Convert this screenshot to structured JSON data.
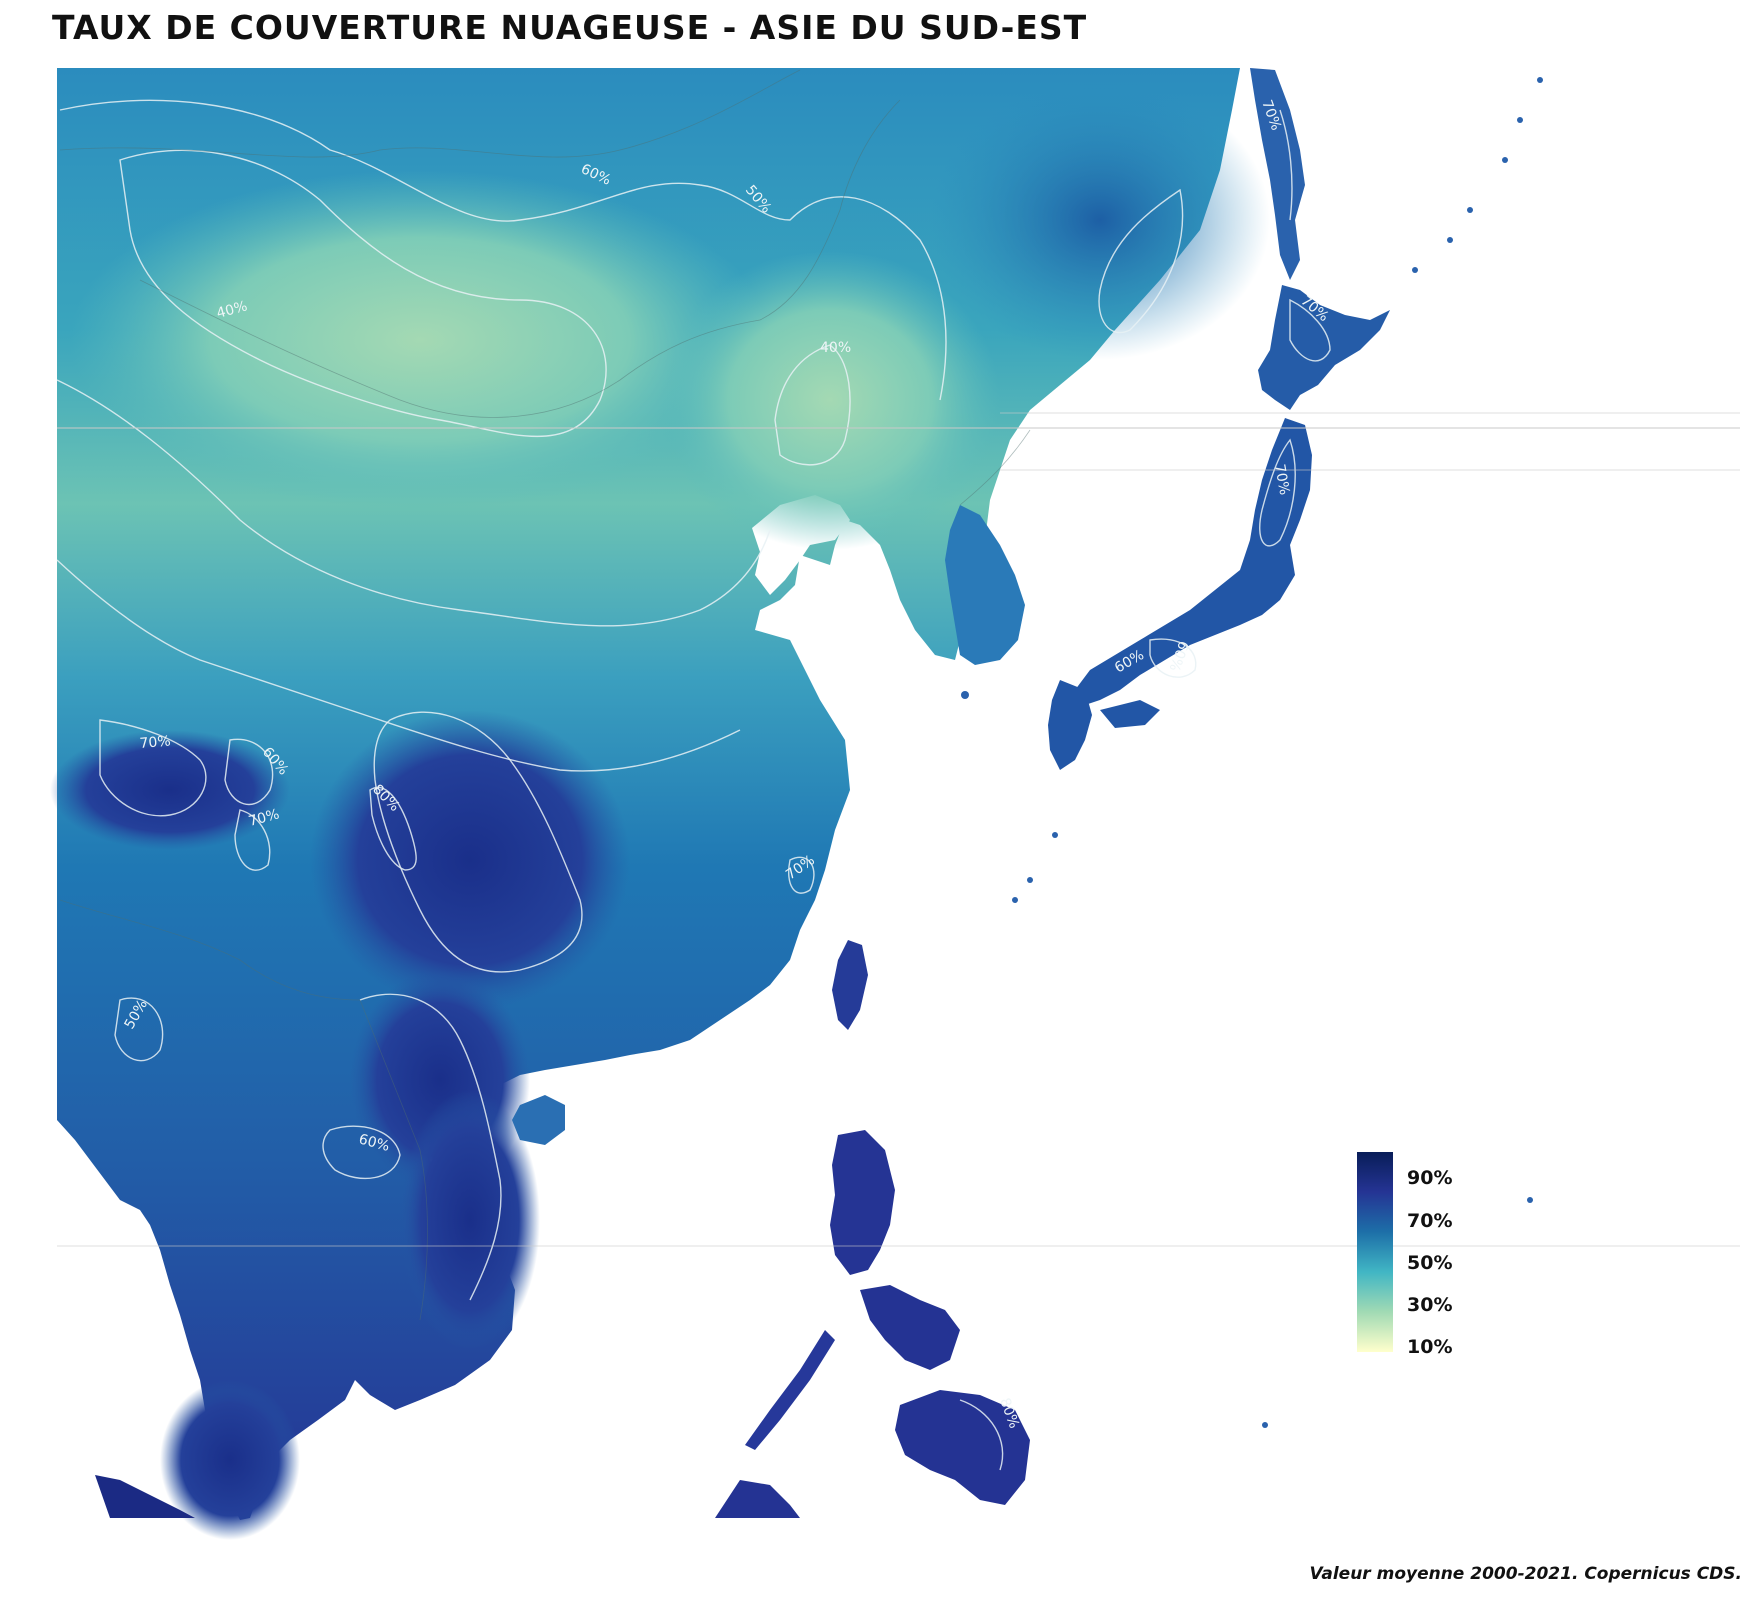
{
  "title": "Taux de couverture nuageuse - Asie du Sud-Est",
  "caption": "Valeur moyenne 2000-2021. Copernicus CDS.",
  "legend": {
    "labels": [
      "90%",
      "70%",
      "50%",
      "30%",
      "10%"
    ],
    "colors": [
      "#081d58",
      "#253494",
      "#1d6fa8",
      "#41b6c4",
      "#a1dab4",
      "#ffffcc"
    ]
  },
  "contour_labels": [
    "60%",
    "50%",
    "40%",
    "40%",
    "70%",
    "60%",
    "70%",
    "80%",
    "70%",
    "50%",
    "60%",
    "70%",
    "70%",
    "70%",
    "60%",
    "60%",
    "80%"
  ],
  "colors": {
    "ocean": "#ffffff",
    "contour": "#e8f1f4",
    "border": "#4f6f6f"
  }
}
